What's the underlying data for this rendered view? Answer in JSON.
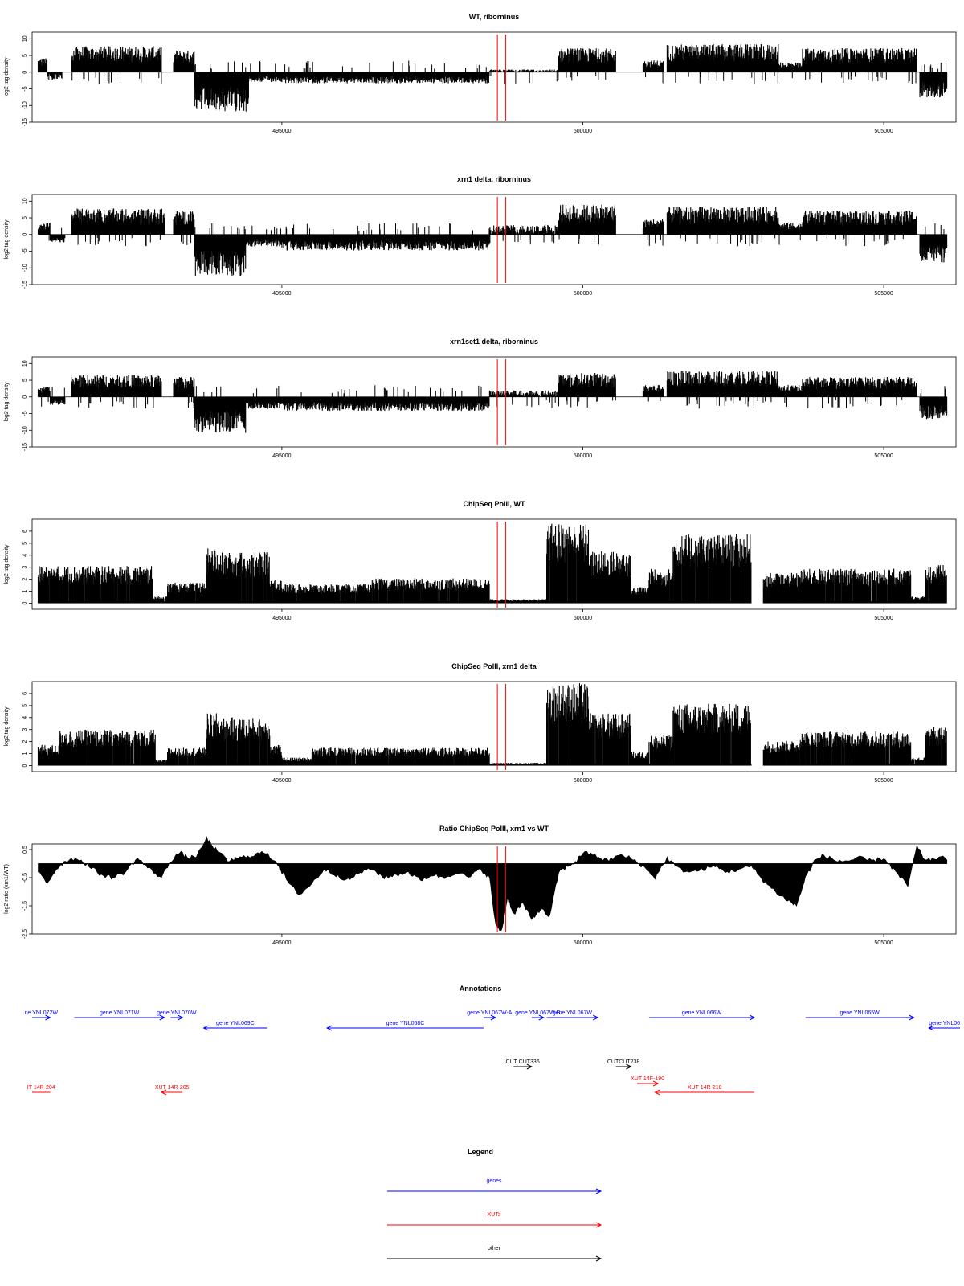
{
  "colors": {
    "gene": "#0000ff",
    "xut": "#ff0000",
    "other": "#000000",
    "marker": "#ff0000",
    "bars": "#000000"
  },
  "chart_data": [
    {
      "type": "bar",
      "title": "WT, riborninus",
      "ylabel": "log2 tag density",
      "xlim": [
        490850,
        506200
      ],
      "ylim": [
        -15,
        12
      ],
      "xticks": [
        495000,
        500000,
        505000
      ],
      "yticks": [
        -15,
        -10,
        -5,
        0,
        5,
        10
      ],
      "markers": [
        498580,
        498720
      ],
      "mode": "signed",
      "segments": [
        {
          "x": [
            490950,
            491100
          ],
          "y": 3.5
        },
        {
          "x": [
            491100,
            491350
          ],
          "y": -1.2
        },
        {
          "x": [
            491500,
            493000
          ],
          "y": 6.5
        },
        {
          "x": [
            493200,
            493550
          ],
          "y": 5.5
        },
        {
          "x": [
            493550,
            494450
          ],
          "y": -10
        },
        {
          "x": [
            494450,
            495000
          ],
          "y": -2.5
        },
        {
          "x": [
            495000,
            498450
          ],
          "y": -2.8
        },
        {
          "x": [
            498450,
            499600
          ],
          "y": 0.4
        },
        {
          "x": [
            499600,
            500550
          ],
          "y": 6
        },
        {
          "x": [
            501000,
            501350
          ],
          "y": 3
        },
        {
          "x": [
            501400,
            503250
          ],
          "y": 7
        },
        {
          "x": [
            503250,
            503650
          ],
          "y": 2.5
        },
        {
          "x": [
            503650,
            505550
          ],
          "y": 6
        },
        {
          "x": [
            505600,
            506050
          ],
          "y": -6.5
        }
      ]
    },
    {
      "type": "bar",
      "title": "xrn1 delta, riborninus",
      "ylabel": "log2 tag density",
      "xlim": [
        490850,
        506200
      ],
      "ylim": [
        -15,
        12
      ],
      "xticks": [
        495000,
        500000,
        505000
      ],
      "yticks": [
        -15,
        -10,
        -5,
        0,
        5,
        10
      ],
      "markers": [
        498580,
        498720
      ],
      "mode": "signed",
      "segments": [
        {
          "x": [
            490950,
            491150
          ],
          "y": 3
        },
        {
          "x": [
            491150,
            491400
          ],
          "y": -2
        },
        {
          "x": [
            491500,
            493050
          ],
          "y": 6.5
        },
        {
          "x": [
            493200,
            493550
          ],
          "y": 6
        },
        {
          "x": [
            493550,
            494400
          ],
          "y": -10.5
        },
        {
          "x": [
            494400,
            495000
          ],
          "y": -3
        },
        {
          "x": [
            495000,
            498450
          ],
          "y": -4
        },
        {
          "x": [
            498450,
            499600
          ],
          "y": 1.5
        },
        {
          "x": [
            499600,
            500550
          ],
          "y": 7.5
        },
        {
          "x": [
            501000,
            501350
          ],
          "y": 4
        },
        {
          "x": [
            501400,
            503250
          ],
          "y": 7
        },
        {
          "x": [
            503250,
            503650
          ],
          "y": 3
        },
        {
          "x": [
            503650,
            505550
          ],
          "y": 6
        },
        {
          "x": [
            505600,
            506050
          ],
          "y": -7
        }
      ]
    },
    {
      "type": "bar",
      "title": "xrn1set1 delta, riborninus",
      "ylabel": "log2 tag density",
      "xlim": [
        490850,
        506200
      ],
      "ylim": [
        -15,
        12
      ],
      "xticks": [
        495000,
        500000,
        505000
      ],
      "yticks": [
        -15,
        -10,
        -5,
        0,
        5,
        10
      ],
      "markers": [
        498580,
        498720
      ],
      "mode": "signed",
      "segments": [
        {
          "x": [
            490950,
            491150
          ],
          "y": 2.5
        },
        {
          "x": [
            491150,
            491400
          ],
          "y": -2
        },
        {
          "x": [
            491500,
            493000
          ],
          "y": 5.5
        },
        {
          "x": [
            493200,
            493550
          ],
          "y": 5
        },
        {
          "x": [
            493550,
            494400
          ],
          "y": -9
        },
        {
          "x": [
            494400,
            495000
          ],
          "y": -3
        },
        {
          "x": [
            495000,
            498450
          ],
          "y": -3.5
        },
        {
          "x": [
            498450,
            499600
          ],
          "y": 1
        },
        {
          "x": [
            499600,
            500550
          ],
          "y": 6
        },
        {
          "x": [
            501000,
            501350
          ],
          "y": 3
        },
        {
          "x": [
            501400,
            503250
          ],
          "y": 6.5
        },
        {
          "x": [
            503250,
            503650
          ],
          "y": 3
        },
        {
          "x": [
            503650,
            505550
          ],
          "y": 5
        },
        {
          "x": [
            505600,
            506050
          ],
          "y": -5.5
        }
      ]
    },
    {
      "type": "bar",
      "title": "ChipSeq PolII, WT",
      "ylabel": "log2 tag density",
      "xlim": [
        490850,
        506200
      ],
      "ylim": [
        -0.5,
        7
      ],
      "xticks": [
        495000,
        500000,
        505000
      ],
      "yticks": [
        0,
        1,
        2,
        3,
        4,
        5,
        6
      ],
      "markers": [
        498580,
        498720
      ],
      "mode": "positive",
      "segments": [
        {
          "x": [
            490950,
            492850
          ],
          "y": 2.7
        },
        {
          "x": [
            492850,
            493100
          ],
          "y": 0.5
        },
        {
          "x": [
            493100,
            493750
          ],
          "y": 1.5
        },
        {
          "x": [
            493750,
            494000
          ],
          "y": 4
        },
        {
          "x": [
            494000,
            494800
          ],
          "y": 3.7
        },
        {
          "x": [
            494800,
            495000
          ],
          "y": 1.8
        },
        {
          "x": [
            495000,
            496500
          ],
          "y": 1.4
        },
        {
          "x": [
            496500,
            498450
          ],
          "y": 1.8
        },
        {
          "x": [
            498450,
            499400
          ],
          "y": 0.3
        },
        {
          "x": [
            499400,
            500100
          ],
          "y": 5.8
        },
        {
          "x": [
            500100,
            500800
          ],
          "y": 3.8
        },
        {
          "x": [
            500800,
            501100
          ],
          "y": 1.2
        },
        {
          "x": [
            501100,
            501500
          ],
          "y": 2.5
        },
        {
          "x": [
            501500,
            502800
          ],
          "y": 5
        },
        {
          "x": [
            503000,
            503600
          ],
          "y": 2.2
        },
        {
          "x": [
            503600,
            505450
          ],
          "y": 2.5
        },
        {
          "x": [
            505450,
            505700
          ],
          "y": 0.5
        },
        {
          "x": [
            505700,
            506050
          ],
          "y": 2.8
        }
      ]
    },
    {
      "type": "bar",
      "title": "ChipSeq PolII, xrn1 delta",
      "ylabel": "log2 tag density",
      "xlim": [
        490850,
        506200
      ],
      "ylim": [
        -0.5,
        7
      ],
      "xticks": [
        495000,
        500000,
        505000
      ],
      "yticks": [
        0,
        1,
        2,
        3,
        4,
        5,
        6
      ],
      "markers": [
        498580,
        498720
      ],
      "mode": "positive",
      "segments": [
        {
          "x": [
            490950,
            491300
          ],
          "y": 1.5
        },
        {
          "x": [
            491300,
            492900
          ],
          "y": 2.6
        },
        {
          "x": [
            492900,
            493100
          ],
          "y": 0.4
        },
        {
          "x": [
            493100,
            493750
          ],
          "y": 1.3
        },
        {
          "x": [
            493750,
            494000
          ],
          "y": 3.8
        },
        {
          "x": [
            494000,
            494800
          ],
          "y": 3.5
        },
        {
          "x": [
            494800,
            495000
          ],
          "y": 1.5
        },
        {
          "x": [
            495000,
            495500
          ],
          "y": 0.6
        },
        {
          "x": [
            495500,
            498450
          ],
          "y": 1.3
        },
        {
          "x": [
            498450,
            499400
          ],
          "y": 0.2
        },
        {
          "x": [
            499400,
            500100
          ],
          "y": 6
        },
        {
          "x": [
            500100,
            500800
          ],
          "y": 3.8
        },
        {
          "x": [
            500800,
            501100
          ],
          "y": 1
        },
        {
          "x": [
            501100,
            501500
          ],
          "y": 2.2
        },
        {
          "x": [
            501500,
            502800
          ],
          "y": 4.5
        },
        {
          "x": [
            503000,
            503600
          ],
          "y": 1.8
        },
        {
          "x": [
            503600,
            505450
          ],
          "y": 2.5
        },
        {
          "x": [
            505450,
            505700
          ],
          "y": 0.6
        },
        {
          "x": [
            505700,
            506050
          ],
          "y": 2.8
        }
      ]
    },
    {
      "type": "area",
      "title": "Ratio ChipSeq PolII, xrn1 vs WT",
      "ylabel": "log2 ratio (xrn1/WT)",
      "xlim": [
        490850,
        506200
      ],
      "ylim": [
        -2.5,
        0.7
      ],
      "xticks": [
        495000,
        500000,
        505000
      ],
      "yticks": [
        -2.5,
        -1.5,
        -0.5,
        0.5
      ],
      "ytick_labels": [
        "-2.5",
        "-1.5",
        "-0.5",
        "0.5"
      ],
      "markers": [
        498580,
        498720
      ],
      "mode": "area",
      "x": [
        490950,
        491100,
        491250,
        491400,
        491600,
        491800,
        492000,
        492200,
        492400,
        492600,
        492800,
        493000,
        493150,
        493300,
        493450,
        493600,
        493750,
        493900,
        494100,
        494300,
        494500,
        494700,
        494900,
        495000,
        495150,
        495300,
        495500,
        495700,
        495900,
        496100,
        496300,
        496500,
        496700,
        496900,
        497100,
        497300,
        497500,
        497700,
        497900,
        498100,
        498300,
        498450,
        498550,
        498650,
        498750,
        498850,
        499000,
        499150,
        499300,
        499450,
        499600,
        499750,
        499900,
        500000,
        500200,
        500400,
        500600,
        500800,
        501000,
        501200,
        501400,
        501600,
        501800,
        502000,
        502200,
        502400,
        502600,
        502800,
        503000,
        503200,
        503400,
        503550,
        503700,
        503850,
        504000,
        504200,
        504400,
        504600,
        504800,
        505000,
        505200,
        505400,
        505550,
        505700,
        505850,
        506050
      ],
      "y": [
        -0.3,
        -0.7,
        -0.2,
        0.1,
        0.2,
        -0.1,
        -0.4,
        -0.5,
        -0.3,
        0.2,
        -0.2,
        -0.5,
        0.1,
        0.4,
        0.2,
        0.3,
        0.9,
        0.5,
        0.1,
        0.2,
        0.3,
        0.4,
        0.1,
        -0.3,
        -0.8,
        -1.1,
        -0.7,
        -0.2,
        -0.4,
        -0.6,
        -0.3,
        -0.2,
        -0.5,
        -0.4,
        -0.3,
        -0.6,
        -0.4,
        -0.5,
        -0.3,
        -0.5,
        -0.2,
        -0.5,
        -2.2,
        -2.4,
        -1.2,
        -1.8,
        -1.4,
        -2.0,
        -1.6,
        -1.9,
        -0.3,
        -0.1,
        0.1,
        0.4,
        0.3,
        0.1,
        0.3,
        0.2,
        -0.1,
        -0.5,
        0.2,
        -0.2,
        -0.3,
        -0.2,
        -0.1,
        -0.3,
        -0.2,
        -0.1,
        -0.6,
        -1.0,
        -1.3,
        -1.5,
        -0.5,
        0.1,
        0.3,
        0.1,
        0.1,
        0.2,
        0.1,
        0.2,
        -0.3,
        -0.8,
        0.6,
        0.1,
        0.2,
        0.2
      ]
    }
  ],
  "annotations": {
    "title": "Annotations",
    "items": [
      {
        "label": "ne YNL072W",
        "start": 490850,
        "end": 491150,
        "row": 0,
        "dir": "right",
        "kind": "gene"
      },
      {
        "label": "gene YNL071W",
        "start": 491550,
        "end": 493050,
        "row": 0,
        "dir": "right",
        "kind": "gene"
      },
      {
        "label": "gene YNL070W",
        "start": 493150,
        "end": 493350,
        "row": 0,
        "dir": "right",
        "kind": "gene"
      },
      {
        "label": "gene YNL069C",
        "start": 493700,
        "end": 494750,
        "row": 1,
        "dir": "left",
        "kind": "gene"
      },
      {
        "label": "gene YNL068C",
        "start": 495750,
        "end": 498350,
        "row": 1,
        "dir": "left",
        "kind": "gene"
      },
      {
        "label": "gene YNL067W-A",
        "start": 498350,
        "end": 498550,
        "row": 0,
        "dir": "right",
        "kind": "gene"
      },
      {
        "label": "gene YNL067W-B",
        "start": 499150,
        "end": 499350,
        "row": 0,
        "dir": "right",
        "kind": "gene"
      },
      {
        "label": "gene YNL067W",
        "start": 499400,
        "end": 500250,
        "row": 0,
        "dir": "right",
        "kind": "gene"
      },
      {
        "label": "gene YNL066W",
        "start": 501100,
        "end": 502850,
        "row": 0,
        "dir": "right",
        "kind": "gene"
      },
      {
        "label": "gene YNL065W",
        "start": 503700,
        "end": 505500,
        "row": 0,
        "dir": "right",
        "kind": "gene"
      },
      {
        "label": "gene YNL06",
        "start": 505750,
        "end": 506700,
        "row": 1,
        "dir": "left",
        "kind": "gene"
      },
      {
        "label": "CUT CUT336",
        "start": 498850,
        "end": 499150,
        "row": 2,
        "dir": "right",
        "kind": "other"
      },
      {
        "label": "CUTCUT238",
        "start": 500550,
        "end": 500800,
        "row": 2,
        "dir": "right",
        "kind": "other"
      },
      {
        "label": "IT 14R-204",
        "start": 490850,
        "end": 491150,
        "row": 3,
        "dir": "none",
        "kind": "xut"
      },
      {
        "label": "XUT 14R-205",
        "start": 493000,
        "end": 493350,
        "row": 3,
        "dir": "left",
        "kind": "xut"
      },
      {
        "label": "XUT 14F-190",
        "start": 500900,
        "end": 501250,
        "row": 2.6,
        "dir": "right",
        "kind": "xut"
      },
      {
        "label": "XUT 14R-210",
        "start": 501200,
        "end": 502850,
        "row": 3,
        "dir": "left",
        "kind": "xut"
      }
    ]
  },
  "legend": {
    "title": "Legend",
    "items": [
      {
        "label": "genes",
        "kind": "gene"
      },
      {
        "label": "XUTs",
        "kind": "xut"
      },
      {
        "label": "other",
        "kind": "other"
      }
    ]
  }
}
